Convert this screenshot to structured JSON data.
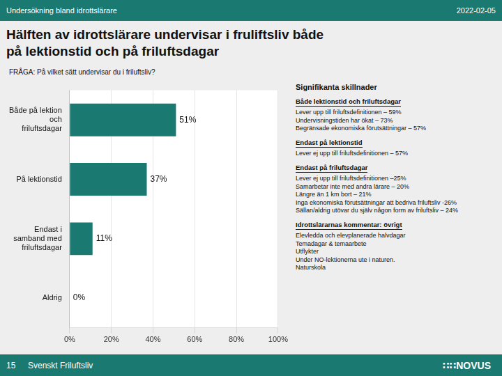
{
  "chart_data": {
    "type": "bar",
    "orientation": "horizontal",
    "title": [
      "Hälften av idrottslärare undervisar i fruliftsliv både",
      "på lektionstid och på friluftsdagar"
    ],
    "categories": [
      "Både på lektion\noch\nfriluftsdagar",
      "På lektionstid",
      "Endast i\nsamband med\nfriluftsdagar",
      "Aldrig"
    ],
    "values": [
      51,
      37,
      11,
      0
    ],
    "value_labels": [
      "51%",
      "37%",
      "11%",
      "0%"
    ],
    "data_labels": true,
    "color": "#1a7a72",
    "xlim": [
      0,
      100
    ],
    "xticks": [
      {
        "value": 0,
        "label": "0%"
      },
      {
        "value": 20,
        "label": "20%"
      },
      {
        "value": 40,
        "label": "40%"
      },
      {
        "value": 60,
        "label": "60%"
      },
      {
        "value": 80,
        "label": "80%"
      },
      {
        "value": 100,
        "label": "100%"
      }
    ],
    "grid": true,
    "legend": false,
    "annotations": [
      [
        "Undersökning bland idrottslärare",
        "2022-02-05"
      ],
      [
        "FRÅGA: På vilket sätt undervisar du i friluftsliv?"
      ],
      [
        "Signifikanta skillnader"
      ],
      [
        "Både lektionstid och friluftsdagar",
        "Lever upp till friluftsdefinitionen – 59%",
        "Undervisningstiden har ökat – 73%",
        "Begränsade ekonomiska förutsättningar – 57%"
      ],
      [
        "Endast på lektionstid",
        "Lever ej upp till friluftsdefinitionen – 57%"
      ],
      [
        "Endast på friluftsdagar",
        "Lever ej upp till friluftsdefinitionen –25%",
        "Samarbetar inte med andra lärare – 20%",
        "Längre än 1 km bort – 21%",
        "Inga ekonomiska förutsättningar att bedriva friluftsliv -26%",
        "Sällan/aldrig utövar du själv någon form av friluftsliv – 24%"
      ],
      [
        "Idrottslärarnas kommentar: övrigt",
        "Elevledda och elevplanerade halvdagar",
        "Temadagar & temaarbete",
        "Utflykter",
        "Under NO-lektionerna ute i naturen.",
        "Naturskola"
      ],
      [
        "15",
        "Svenskt Friluftsliv",
        "∷∷NOVUS"
      ]
    ]
  }
}
